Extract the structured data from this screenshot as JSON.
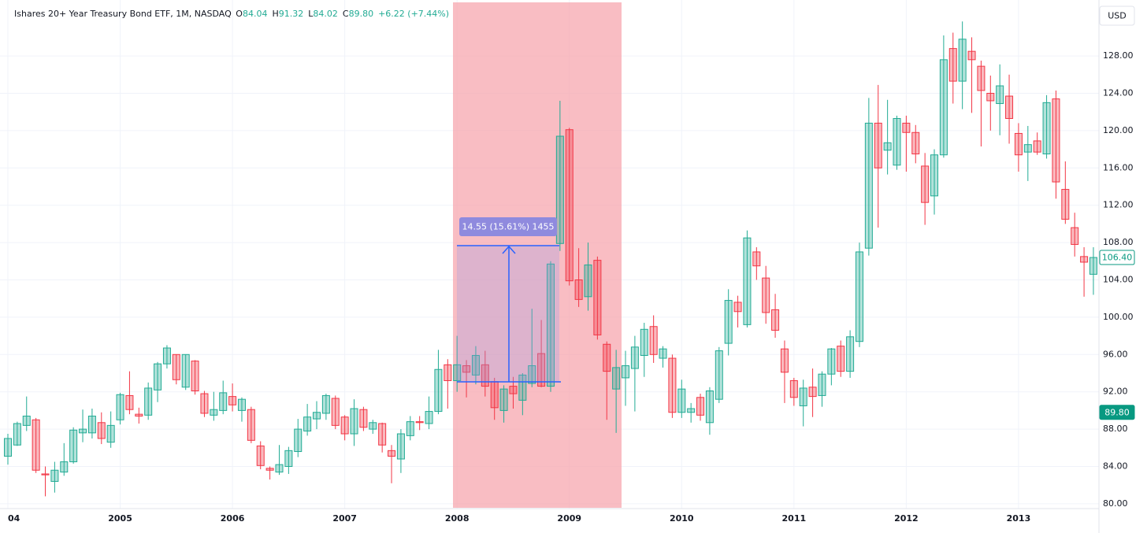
{
  "chart_data": {
    "type": "candlestick",
    "title": "Ishares 20+ Year Treasury Bond ETF, 1M, NASDAQ",
    "header_fields": [
      {
        "key": "O",
        "value": "84.04"
      },
      {
        "key": "H",
        "value": "91.32"
      },
      {
        "key": "L",
        "value": "84.02"
      },
      {
        "key": "C",
        "value": "89.80"
      }
    ],
    "change": "+6.22 (+7.44%)",
    "currency": "USD",
    "annotation": "14.55 (15.61%) 1455",
    "up_color": "#22ab94",
    "down_color": "#f23645",
    "grid": true,
    "x": [
      "2004-01",
      "2004-02",
      "2004-03",
      "2004-04",
      "2004-05",
      "2004-06",
      "2004-07",
      "2004-08",
      "2004-09",
      "2004-10",
      "2004-11",
      "2004-12",
      "2005-01",
      "2005-02",
      "2005-03",
      "2005-04",
      "2005-05",
      "2005-06",
      "2005-07",
      "2005-08",
      "2005-09",
      "2005-10",
      "2005-11",
      "2005-12",
      "2006-01",
      "2006-02",
      "2006-03",
      "2006-04",
      "2006-05",
      "2006-06",
      "2006-07",
      "2006-08",
      "2006-09",
      "2006-10",
      "2006-11",
      "2006-12",
      "2007-01",
      "2007-02",
      "2007-03",
      "2007-04",
      "2007-05",
      "2007-06",
      "2007-07",
      "2007-08",
      "2007-09",
      "2007-10",
      "2007-11",
      "2007-12",
      "2008-01",
      "2008-02",
      "2008-03",
      "2008-04",
      "2008-05",
      "2008-06",
      "2008-07",
      "2008-08",
      "2008-09",
      "2008-10",
      "2008-11",
      "2008-12",
      "2009-01",
      "2009-02",
      "2009-03",
      "2009-04",
      "2009-05",
      "2009-06",
      "2009-07",
      "2009-08",
      "2009-09",
      "2009-10",
      "2009-11",
      "2009-12",
      "2010-01",
      "2010-02",
      "2010-03",
      "2010-04",
      "2010-05",
      "2010-06",
      "2010-07",
      "2010-08",
      "2010-09",
      "2010-10",
      "2010-11",
      "2010-12",
      "2011-01",
      "2011-02",
      "2011-03",
      "2011-04",
      "2011-05",
      "2011-06",
      "2011-07",
      "2011-08",
      "2011-09",
      "2011-10",
      "2011-11",
      "2011-12",
      "2012-01",
      "2012-02",
      "2012-03",
      "2012-04",
      "2012-05",
      "2012-06",
      "2012-07",
      "2012-08",
      "2012-09",
      "2012-10",
      "2012-11",
      "2012-12",
      "2013-01",
      "2013-02",
      "2013-03",
      "2013-04",
      "2013-05",
      "2013-06",
      "2013-07",
      "2013-08",
      "2013-09"
    ],
    "open": [
      85.1,
      86.3,
      88.4,
      89.0,
      83.2,
      82.4,
      83.4,
      84.5,
      87.6,
      87.6,
      88.7,
      86.6,
      89.0,
      91.6,
      89.6,
      89.5,
      92.2,
      95.0,
      96.0,
      92.5,
      95.3,
      91.8,
      89.5,
      90.0,
      91.5,
      90.0,
      90.1,
      86.2,
      83.8,
      83.4,
      84.0,
      85.6,
      87.8,
      89.1,
      89.7,
      91.3,
      89.3,
      87.5,
      90.1,
      88.0,
      88.6,
      85.7,
      84.8,
      87.3,
      88.8,
      88.6,
      89.9,
      94.9,
      93.2,
      94.8,
      93.8,
      94.9,
      93.1,
      90.0,
      92.6,
      91.1,
      92.9,
      96.1,
      92.6,
      107.9,
      120.1,
      104.0,
      102.2,
      106.1,
      97.1,
      92.3,
      93.5,
      94.5,
      95.9,
      99.0,
      95.6,
      95.6,
      89.8,
      89.8,
      91.4,
      88.7,
      91.2,
      97.2,
      101.6,
      99.2,
      107.0,
      104.2,
      100.8,
      96.6,
      93.2,
      90.5,
      92.5,
      91.6,
      93.9,
      96.9,
      94.2,
      97.4,
      107.4,
      120.8,
      117.9,
      116.3,
      120.8,
      119.8,
      116.2,
      113.0,
      117.4,
      128.8,
      125.3,
      128.5,
      126.9,
      124.0,
      122.9,
      123.7,
      119.7,
      117.7,
      118.9,
      117.5,
      123.4,
      113.7,
      109.6,
      106.5,
      104.6
    ],
    "high": [
      87.5,
      88.8,
      91.5,
      89.2,
      84.0,
      84.5,
      86.5,
      88.2,
      90.1,
      90.2,
      89.8,
      89.9,
      91.9,
      94.2,
      90.3,
      93.0,
      95.2,
      97.0,
      96.0,
      96.0,
      95.4,
      92.1,
      92.0,
      93.2,
      92.9,
      91.4,
      90.4,
      86.7,
      84.0,
      86.3,
      86.1,
      89.1,
      90.7,
      91.0,
      91.8,
      91.6,
      89.5,
      91.2,
      90.4,
      89.0,
      88.7,
      86.3,
      88.0,
      89.4,
      89.4,
      91.5,
      96.5,
      95.5,
      98.0,
      95.4,
      96.9,
      96.4,
      93.5,
      92.7,
      93.6,
      94.0,
      100.9,
      99.7,
      106.0,
      123.2,
      120.3,
      107.4,
      108.0,
      106.5,
      97.4,
      96.5,
      96.4,
      98.0,
      99.4,
      100.2,
      96.9,
      96.0,
      93.3,
      90.8,
      91.8,
      92.5,
      96.8,
      103.0,
      102.3,
      109.3,
      107.5,
      105.5,
      102.5,
      97.5,
      93.5,
      93.3,
      94.5,
      94.2,
      96.7,
      97.5,
      98.6,
      108.0,
      123.5,
      124.9,
      123.3,
      121.6,
      121.6,
      120.6,
      117.6,
      118.0,
      130.2,
      130.5,
      131.7,
      130.0,
      127.5,
      125.9,
      127.1,
      126.0,
      120.8,
      120.5,
      119.8,
      123.8,
      124.3,
      116.7,
      111.2,
      107.5,
      107.5
    ],
    "low": [
      84.2,
      86.2,
      87.8,
      83.3,
      80.8,
      81.2,
      83.0,
      84.3,
      86.6,
      87.0,
      86.4,
      86.0,
      88.5,
      89.6,
      88.6,
      89.0,
      90.9,
      94.5,
      92.8,
      92.2,
      91.7,
      89.3,
      88.9,
      89.6,
      89.9,
      88.8,
      86.5,
      83.7,
      82.6,
      83.1,
      83.2,
      85.0,
      87.3,
      88.0,
      89.0,
      88.0,
      86.8,
      86.2,
      87.8,
      87.5,
      85.5,
      82.2,
      83.3,
      86.8,
      87.9,
      88.0,
      89.6,
      90.2,
      92.0,
      91.4,
      92.8,
      91.5,
      89.0,
      88.7,
      90.2,
      89.5,
      92.5,
      92.5,
      92.0,
      107.1,
      103.4,
      101.1,
      100.7,
      97.6,
      89.0,
      87.6,
      90.5,
      89.9,
      93.6,
      95.1,
      94.6,
      89.2,
      89.2,
      88.7,
      88.9,
      87.4,
      90.8,
      95.9,
      98.9,
      98.9,
      104.0,
      99.3,
      97.8,
      90.8,
      90.5,
      88.3,
      89.3,
      90.4,
      92.7,
      93.6,
      93.5,
      96.8,
      106.6,
      109.6,
      115.3,
      115.8,
      115.6,
      116.5,
      109.9,
      111.0,
      117.1,
      122.9,
      122.3,
      121.9,
      118.3,
      120.0,
      119.5,
      118.6,
      115.6,
      114.6,
      117.4,
      117.0,
      112.7,
      110.0,
      106.5,
      102.2,
      102.4
    ],
    "close": [
      87.0,
      88.6,
      89.4,
      83.6,
      83.1,
      83.6,
      84.5,
      87.9,
      88.0,
      89.4,
      87.0,
      88.4,
      91.7,
      90.1,
      89.4,
      92.4,
      95.0,
      96.7,
      93.3,
      96.0,
      92.1,
      89.7,
      90.1,
      91.9,
      90.6,
      91.2,
      86.8,
      84.1,
      83.6,
      84.2,
      85.7,
      88.0,
      89.3,
      89.8,
      91.6,
      88.4,
      87.5,
      90.2,
      88.2,
      88.7,
      86.3,
      85.1,
      87.5,
      88.8,
      88.7,
      89.9,
      94.4,
      93.2,
      94.9,
      94.1,
      95.9,
      92.6,
      90.3,
      92.3,
      91.8,
      93.8,
      94.8,
      92.6,
      105.7,
      119.4,
      103.9,
      101.9,
      105.6,
      98.1,
      94.2,
      94.6,
      94.8,
      96.8,
      98.7,
      96.0,
      96.6,
      89.8,
      92.3,
      90.2,
      89.5,
      92.1,
      96.4,
      101.8,
      100.6,
      108.5,
      105.5,
      100.5,
      98.6,
      94.1,
      91.4,
      92.4,
      91.5,
      93.9,
      96.6,
      94.2,
      97.9,
      107.0,
      120.8,
      116.0,
      118.7,
      121.3,
      119.8,
      117.5,
      112.3,
      117.4,
      127.6,
      125.3,
      129.8,
      127.6,
      124.3,
      123.2,
      124.8,
      121.3,
      117.4,
      118.5,
      117.7,
      123.0,
      114.5,
      110.5,
      107.8,
      105.9,
      106.4
    ],
    "ylim": [
      79.4,
      134.0
    ],
    "yticks": [
      {
        "value": 80,
        "label": "80.00"
      },
      {
        "value": 84,
        "label": "84.00"
      },
      {
        "value": 88,
        "label": "88.00"
      },
      {
        "value": 92,
        "label": "92.00"
      },
      {
        "value": 96,
        "label": "96.00"
      },
      {
        "value": 100,
        "label": "100.00"
      },
      {
        "value": 104,
        "label": "104.00"
      },
      {
        "value": 108,
        "label": "108.00"
      },
      {
        "value": 112,
        "label": "112.00"
      },
      {
        "value": 116,
        "label": "116.00"
      },
      {
        "value": 120,
        "label": "120.00"
      },
      {
        "value": 124,
        "label": "124.00"
      },
      {
        "value": 128,
        "label": "128.00"
      }
    ],
    "xticks": [
      {
        "value": "2004-01",
        "label": "04"
      },
      {
        "value": "2005-01",
        "label": "2005"
      },
      {
        "value": "2006-01",
        "label": "2006"
      },
      {
        "value": "2007-01",
        "label": "2007"
      },
      {
        "value": "2008-01",
        "label": "2008"
      },
      {
        "value": "2009-01",
        "label": "2009"
      },
      {
        "value": "2010-01",
        "label": "2010"
      },
      {
        "value": "2011-01",
        "label": "2011"
      },
      {
        "value": "2012-01",
        "label": "2012"
      },
      {
        "value": "2013-01",
        "label": "2013"
      }
    ],
    "price_labels": [
      {
        "value": 106.4,
        "label": "106.40"
      },
      {
        "value": 89.8,
        "label": "89.80"
      }
    ]
  }
}
